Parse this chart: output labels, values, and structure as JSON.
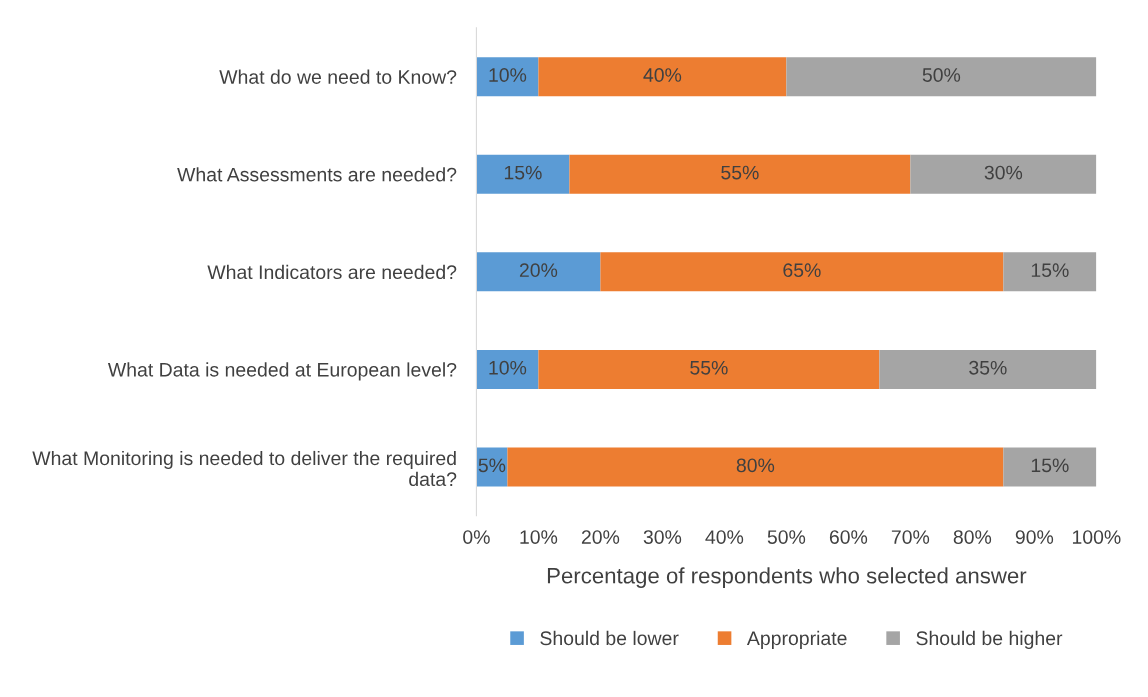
{
  "chart_data": {
    "type": "bar",
    "orientation": "horizontal",
    "stacked": true,
    "categories": [
      "What do we need to Know?",
      "What Assessments are needed?",
      "What Indicators are needed?",
      "What Data is needed at European level?",
      "What Monitoring is needed to deliver the required data?"
    ],
    "series": [
      {
        "name": "Should be lower",
        "color": "#5b9bd5",
        "values": [
          10,
          15,
          20,
          10,
          5
        ],
        "value_labels": [
          "10%",
          "15%",
          "20%",
          "10%",
          "5%"
        ]
      },
      {
        "name": "Appropriate",
        "color": "#ed7d31",
        "values": [
          40,
          55,
          65,
          55,
          80
        ],
        "value_labels": [
          "40%",
          "55%",
          "65%",
          "55%",
          "80%"
        ]
      },
      {
        "name": "Should be higher",
        "color": "#a5a5a5",
        "values": [
          50,
          30,
          15,
          35,
          15
        ],
        "value_labels": [
          "50%",
          "30%",
          "15%",
          "35%",
          "15%"
        ]
      }
    ],
    "xlabel": "Percentage of respondents who selected answer",
    "xlim": [
      0,
      100
    ],
    "xticks": [
      {
        "value": 0,
        "label": "0%"
      },
      {
        "value": 10,
        "label": "10%"
      },
      {
        "value": 20,
        "label": "20%"
      },
      {
        "value": 30,
        "label": "30%"
      },
      {
        "value": 40,
        "label": "40%"
      },
      {
        "value": 50,
        "label": "50%"
      },
      {
        "value": 60,
        "label": "60%"
      },
      {
        "value": 70,
        "label": "70%"
      },
      {
        "value": 80,
        "label": "80%"
      },
      {
        "value": 90,
        "label": "90%"
      },
      {
        "value": 100,
        "label": "100%"
      }
    ],
    "grid": false,
    "legend": "bottom"
  }
}
